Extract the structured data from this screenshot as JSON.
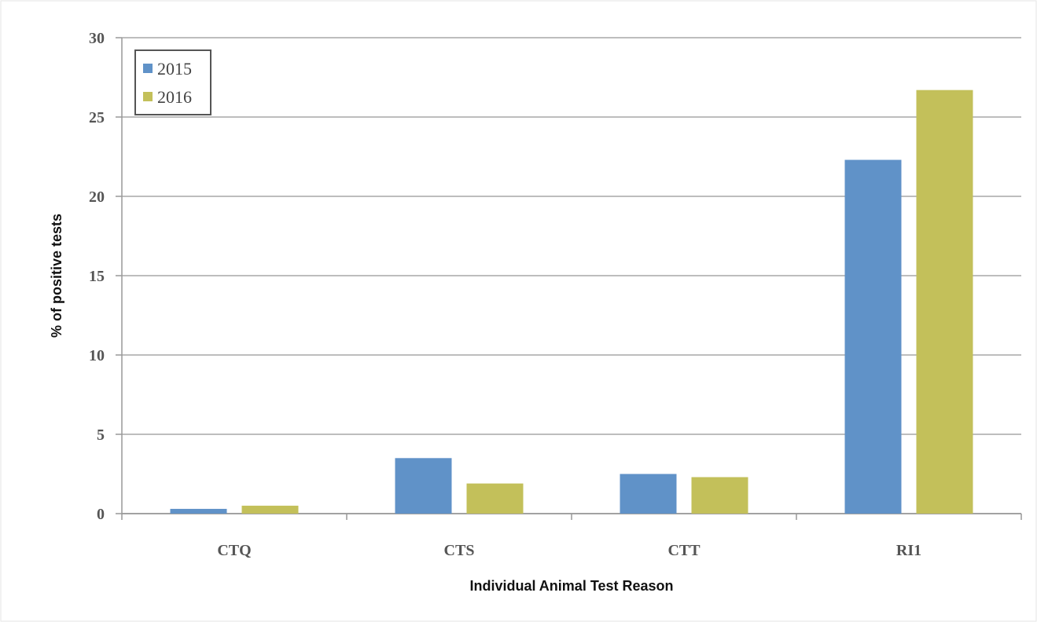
{
  "chart_data": {
    "type": "bar",
    "x_label": "Individual Animal Test Reason",
    "y_label": "% of positive tests",
    "categories": [
      "CTQ",
      "CTS",
      "CTT",
      "RI1"
    ],
    "series": [
      {
        "name": "2015",
        "color": "#6092c8",
        "values": [
          0.3,
          3.5,
          2.5,
          22.3
        ]
      },
      {
        "name": "2016",
        "color": "#c3c05a",
        "values": [
          0.5,
          1.9,
          2.3,
          26.7
        ]
      }
    ],
    "ylim": [
      0,
      30
    ],
    "yticks": [
      0,
      5,
      10,
      15,
      20,
      25,
      30
    ],
    "grid": true,
    "legend": "top-left"
  }
}
